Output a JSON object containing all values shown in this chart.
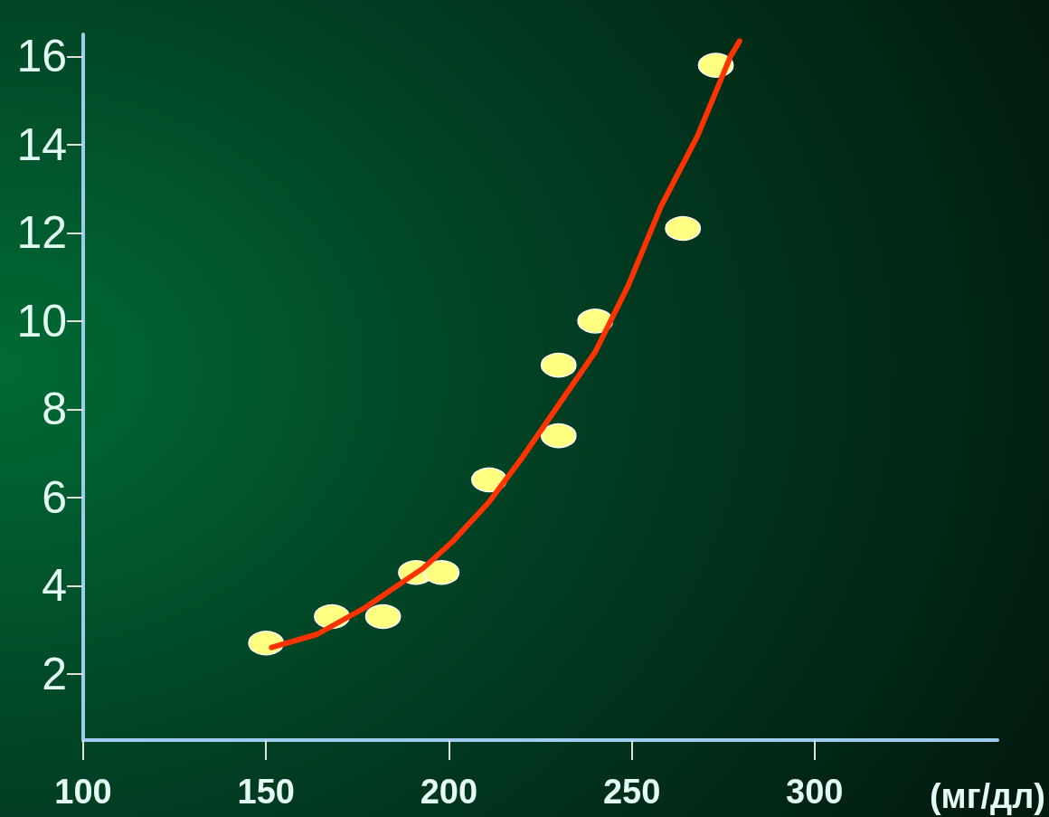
{
  "chart_data": {
    "type": "scatter",
    "xlabel": "(мг/дл)",
    "xlim": [
      100,
      350
    ],
    "xticks": [
      100,
      150,
      200,
      250,
      300
    ],
    "ylim": [
      0.5,
      16.5
    ],
    "yticks": [
      2,
      4,
      6,
      8,
      10,
      12,
      14,
      16
    ],
    "grid": false,
    "marker": "circle",
    "series": [
      {
        "color": "#ffff80",
        "x": [
          150,
          168,
          182,
          191,
          198,
          211,
          230,
          230,
          240,
          264,
          273
        ],
        "values": [
          2.7,
          3.3,
          3.3,
          4.3,
          4.3,
          6.4,
          7.4,
          9.0,
          10.0,
          12.1,
          15.8
        ]
      },
      {
        "type": "line",
        "color": "#ff3300",
        "marker": "none",
        "line_style": "solid",
        "x": [
          151.5,
          164,
          177,
          193,
          201,
          211,
          220,
          230,
          240,
          249,
          258,
          268,
          277,
          279.5
        ],
        "values": [
          2.6,
          2.9,
          3.5,
          4.4,
          5.0,
          5.9,
          6.9,
          8.1,
          9.3,
          10.8,
          12.6,
          14.2,
          16.0,
          16.35
        ]
      }
    ]
  }
}
